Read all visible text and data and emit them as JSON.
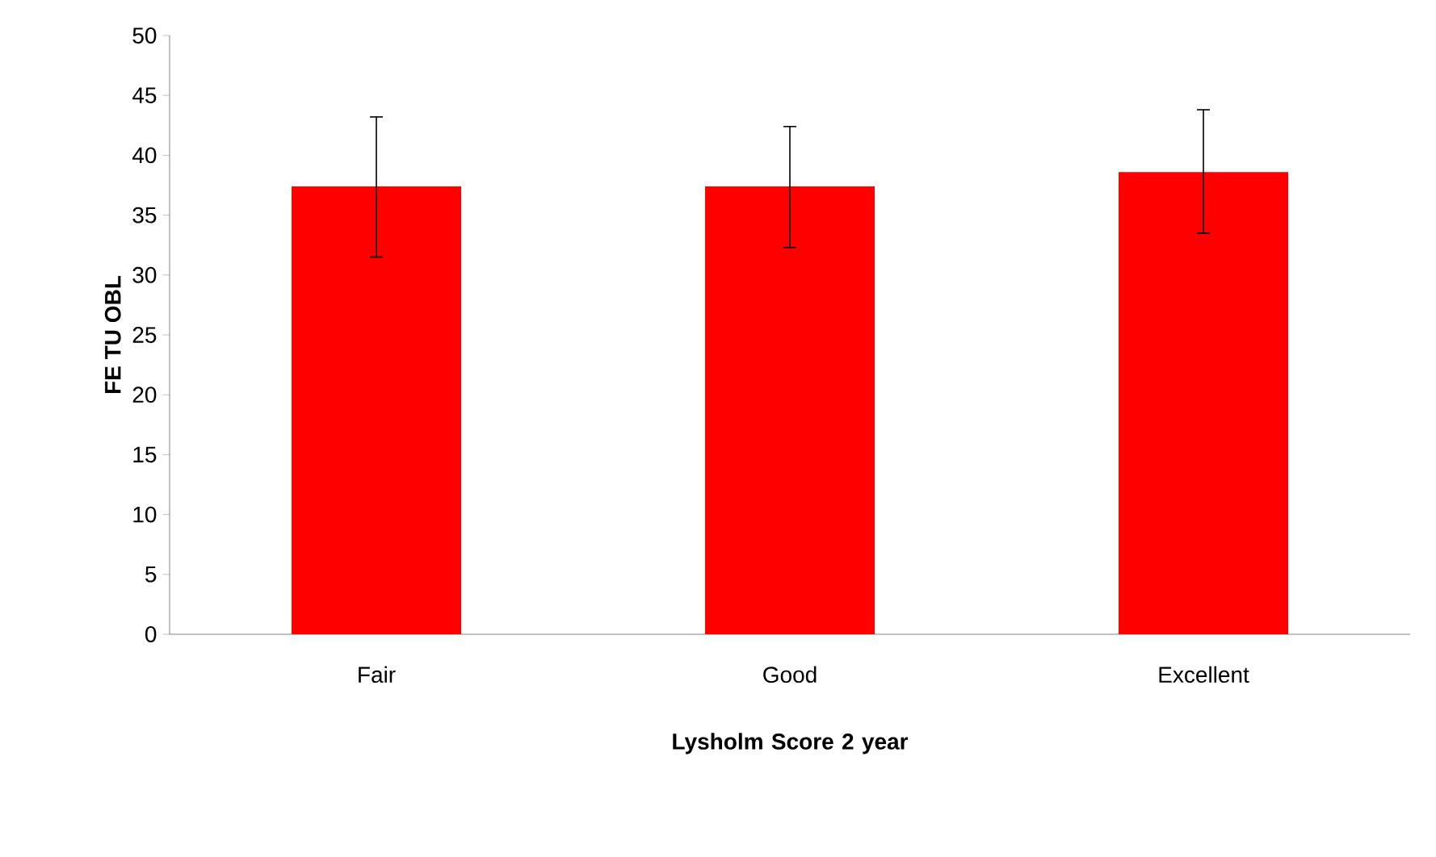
{
  "chart_data": {
    "type": "bar",
    "xlabel": "Lysholm Score 2 year",
    "ylabel": "FE TU OBL",
    "categories": [
      "Fair",
      "Good",
      "Excellent"
    ],
    "values": [
      37.4,
      37.4,
      38.6
    ],
    "errors": [
      [
        31.5,
        43.2
      ],
      [
        32.3,
        42.4
      ],
      [
        33.5,
        43.8
      ]
    ],
    "color": "#ff0000",
    "ylim": [
      0,
      50
    ],
    "yticks": [
      0,
      5,
      10,
      15,
      20,
      25,
      30,
      35,
      40,
      45,
      50
    ],
    "grid": false
  }
}
